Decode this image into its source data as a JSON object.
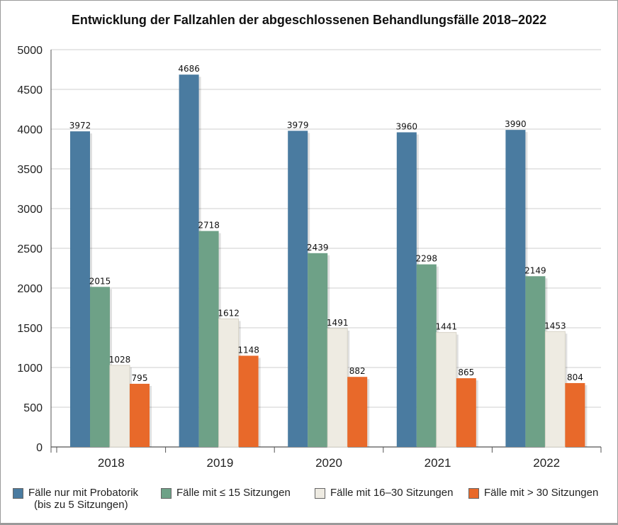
{
  "chart_data": {
    "type": "bar",
    "title": "Entwicklung der Fallzahlen der abgeschlossenen Behandlungsfälle 2018–2022",
    "categories": [
      "2018",
      "2019",
      "2020",
      "2021",
      "2022"
    ],
    "series": [
      {
        "name": "Fälle nur mit Probatorik (bis zu 5 Sitzungen)",
        "name_line1": "Fälle nur mit Probatorik",
        "name_line2": "(bis zu 5 Sitzungen)",
        "color": "#4a7ba0",
        "values": [
          3972,
          4686,
          3979,
          3960,
          3990
        ]
      },
      {
        "name": "Fälle mit ≤ 15 Sitzungen",
        "color": "#6ea187",
        "values": [
          2015,
          2718,
          2439,
          2298,
          2149
        ]
      },
      {
        "name": "Fälle mit 16–30 Sitzungen",
        "color": "#eeebe2",
        "values": [
          1028,
          1612,
          1491,
          1441,
          1453
        ]
      },
      {
        "name": "Fälle mit > 30 Sitzungen",
        "color": "#e8692a",
        "values": [
          795,
          1148,
          882,
          865,
          804
        ]
      }
    ],
    "ylim": [
      0,
      5000
    ],
    "yticks": [
      0,
      500,
      1000,
      1500,
      2000,
      2500,
      3000,
      3500,
      4000,
      4500,
      5000
    ],
    "grid": true,
    "legend": "bottom",
    "xlabel": "",
    "ylabel": ""
  }
}
